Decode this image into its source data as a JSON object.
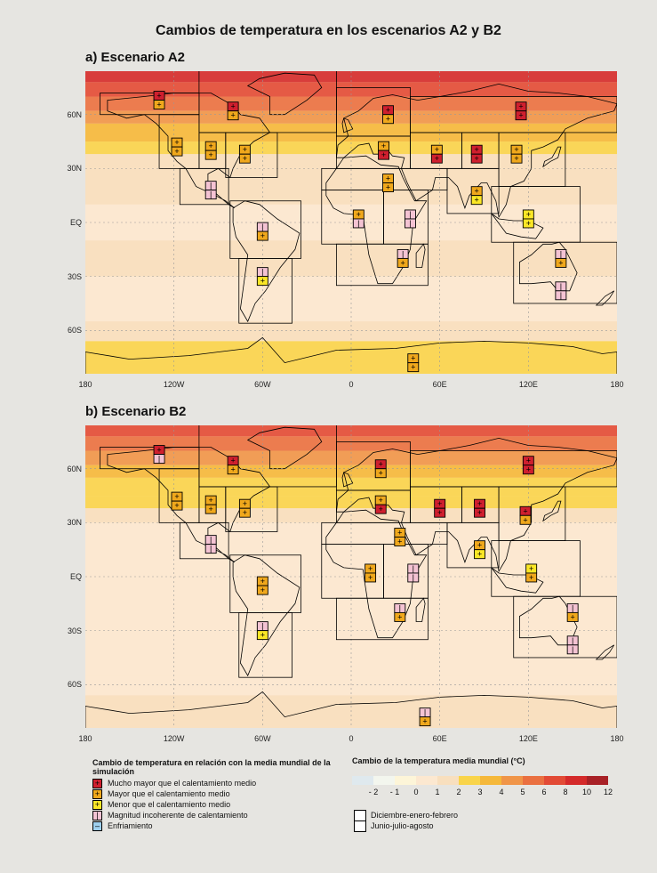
{
  "title": "Cambios de temperatura en los escenarios A2 y B2",
  "panels": [
    {
      "title": "a) Escenario A2"
    },
    {
      "title": "b) Escenario B2"
    }
  ],
  "axis": {
    "x_ticks": [
      "180",
      "120W",
      "60W",
      "0",
      "60E",
      "120E",
      "180"
    ],
    "y_ticks": [
      "60N",
      "30N",
      "EQ",
      "30S",
      "60S"
    ]
  },
  "legend": {
    "title": "Cambio de temperatura en relación con la media mundial de la simulación",
    "items": [
      {
        "label": "Mucho mayor que el calentamiento medio",
        "color": "#cf1f2e",
        "symbol": "++"
      },
      {
        "label": "Mayor que el calentamiento medio",
        "color": "#f0a81c",
        "symbol": "+"
      },
      {
        "label": "Menor que el calentamiento medio",
        "color": "#fbe726",
        "symbol": "+"
      },
      {
        "label": "Magnitud incoherente de calentamiento",
        "color": "#f4c3d3",
        "symbol": "|"
      },
      {
        "label": "Enfriamiento",
        "color": "#9fd0ee",
        "symbol": "–"
      }
    ]
  },
  "colorbar": {
    "title": "Cambio de la temperatura media mundial (°C)",
    "labels": [
      "- 2",
      "- 1",
      "0",
      "1",
      "2",
      "3",
      "4",
      "5",
      "6",
      "8",
      "10",
      "12"
    ],
    "colors": [
      "#dfe9ee",
      "#f3f6ee",
      "#fdf5d8",
      "#fce8d0",
      "#f8dfbe",
      "#f9d44a",
      "#f5b83a",
      "#f09548",
      "#ea7040",
      "#e24a35",
      "#d42a2a",
      "#a82126"
    ]
  },
  "seasons": [
    "Diciembre-enero-febrero",
    "Junio-julio-agosto"
  ],
  "chart_data": {
    "type": "heatmap",
    "xlim": [
      -180,
      180
    ],
    "ylim": [
      -90,
      90
    ],
    "grid": true,
    "panels": [
      {
        "name": "a) Escenario A2",
        "regions": [
          {
            "lon": -130,
            "lat": 68,
            "djf": "much_greater",
            "jja": "greater"
          },
          {
            "lon": -80,
            "lat": 62,
            "djf": "much_greater",
            "jja": "greater"
          },
          {
            "lon": -118,
            "lat": 42,
            "djf": "greater",
            "jja": "greater"
          },
          {
            "lon": -95,
            "lat": 40,
            "djf": "greater",
            "jja": "greater"
          },
          {
            "lon": -72,
            "lat": 38,
            "djf": "greater",
            "jja": "greater"
          },
          {
            "lon": -95,
            "lat": 18,
            "djf": "inconsistent",
            "jja": "inconsistent"
          },
          {
            "lon": -60,
            "lat": -5,
            "djf": "inconsistent",
            "jja": "greater"
          },
          {
            "lon": -60,
            "lat": -30,
            "djf": "inconsistent",
            "jja": "less"
          },
          {
            "lon": 25,
            "lat": 60,
            "djf": "much_greater",
            "jja": "greater"
          },
          {
            "lon": 22,
            "lat": 40,
            "djf": "greater",
            "jja": "much_greater"
          },
          {
            "lon": 25,
            "lat": 22,
            "djf": "greater",
            "jja": "greater"
          },
          {
            "lon": 5,
            "lat": 2,
            "djf": "greater",
            "jja": "inconsistent"
          },
          {
            "lon": 40,
            "lat": 2,
            "djf": "inconsistent",
            "jja": "inconsistent"
          },
          {
            "lon": 35,
            "lat": -20,
            "djf": "inconsistent",
            "jja": "greater"
          },
          {
            "lon": 58,
            "lat": 38,
            "djf": "greater",
            "jja": "much_greater"
          },
          {
            "lon": 85,
            "lat": 38,
            "djf": "much_greater",
            "jja": "much_greater"
          },
          {
            "lon": 112,
            "lat": 38,
            "djf": "greater",
            "jja": "greater"
          },
          {
            "lon": 115,
            "lat": 62,
            "djf": "much_greater",
            "jja": "much_greater"
          },
          {
            "lon": 85,
            "lat": 15,
            "djf": "greater",
            "jja": "less"
          },
          {
            "lon": 120,
            "lat": 2,
            "djf": "less",
            "jja": "less"
          },
          {
            "lon": 142,
            "lat": -20,
            "djf": "inconsistent",
            "jja": "greater"
          },
          {
            "lon": 142,
            "lat": -38,
            "djf": "inconsistent",
            "jja": "inconsistent"
          },
          {
            "lon": 42,
            "lat": -78,
            "djf": "greater",
            "jja": "greater"
          }
        ]
      },
      {
        "name": "b) Escenario B2",
        "regions": [
          {
            "lon": -130,
            "lat": 68,
            "djf": "much_greater",
            "jja": "inconsistent"
          },
          {
            "lon": -80,
            "lat": 62,
            "djf": "much_greater",
            "jja": "greater"
          },
          {
            "lon": -118,
            "lat": 42,
            "djf": "greater",
            "jja": "greater"
          },
          {
            "lon": -95,
            "lat": 40,
            "djf": "greater",
            "jja": "greater"
          },
          {
            "lon": -72,
            "lat": 38,
            "djf": "greater",
            "jja": "greater"
          },
          {
            "lon": -95,
            "lat": 18,
            "djf": "inconsistent",
            "jja": "inconsistent"
          },
          {
            "lon": -60,
            "lat": -5,
            "djf": "greater",
            "jja": "greater"
          },
          {
            "lon": -60,
            "lat": -30,
            "djf": "inconsistent",
            "jja": "less"
          },
          {
            "lon": 20,
            "lat": 60,
            "djf": "much_greater",
            "jja": "greater"
          },
          {
            "lon": 20,
            "lat": 40,
            "djf": "greater",
            "jja": "much_greater"
          },
          {
            "lon": 33,
            "lat": 22,
            "djf": "greater",
            "jja": "greater"
          },
          {
            "lon": 13,
            "lat": 2,
            "djf": "greater",
            "jja": "greater"
          },
          {
            "lon": 42,
            "lat": 2,
            "djf": "inconsistent",
            "jja": "inconsistent"
          },
          {
            "lon": 33,
            "lat": -20,
            "djf": "inconsistent",
            "jja": "greater"
          },
          {
            "lon": 60,
            "lat": 38,
            "djf": "much_greater",
            "jja": "much_greater"
          },
          {
            "lon": 87,
            "lat": 38,
            "djf": "much_greater",
            "jja": "much_greater"
          },
          {
            "lon": 118,
            "lat": 34,
            "djf": "much_greater",
            "jja": "greater"
          },
          {
            "lon": 120,
            "lat": 62,
            "djf": "much_greater",
            "jja": "much_greater"
          },
          {
            "lon": 87,
            "lat": 15,
            "djf": "greater",
            "jja": "less"
          },
          {
            "lon": 122,
            "lat": 2,
            "djf": "less",
            "jja": "greater"
          },
          {
            "lon": 150,
            "lat": -20,
            "djf": "inconsistent",
            "jja": "greater"
          },
          {
            "lon": 150,
            "lat": -38,
            "djf": "inconsistent",
            "jja": "inconsistent"
          },
          {
            "lon": 50,
            "lat": -78,
            "djf": "inconsistent",
            "jja": "greater"
          }
        ]
      }
    ]
  }
}
